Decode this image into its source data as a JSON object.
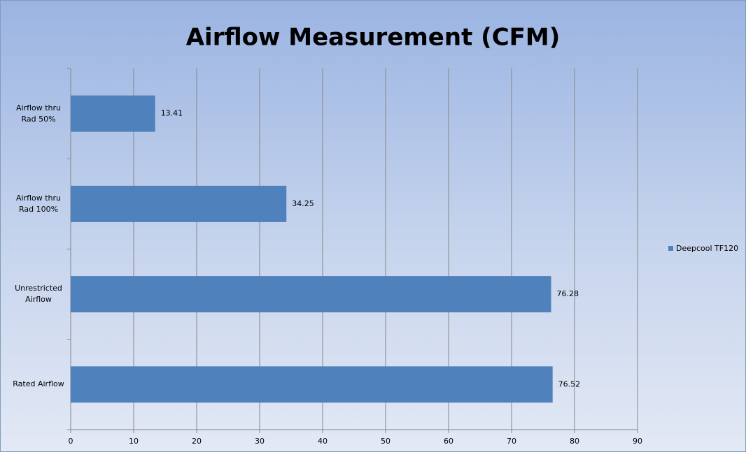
{
  "chart_data": {
    "type": "barh",
    "title": "Airflow Measurement (CFM)",
    "categories": [
      "Airflow thru Rad 50%",
      "Airflow thru Rad 100%",
      "Unrestricted Airflow",
      "Rated Airflow"
    ],
    "series": [
      {
        "name": "Deepcool TF120",
        "color": "#4f81bd",
        "values": [
          13.41,
          34.25,
          76.28,
          76.52
        ]
      }
    ],
    "xlim": [
      0,
      90
    ],
    "xticks": [
      0,
      10,
      20,
      30,
      40,
      50,
      60,
      70,
      80,
      90
    ],
    "grid": true,
    "legend": "right"
  }
}
